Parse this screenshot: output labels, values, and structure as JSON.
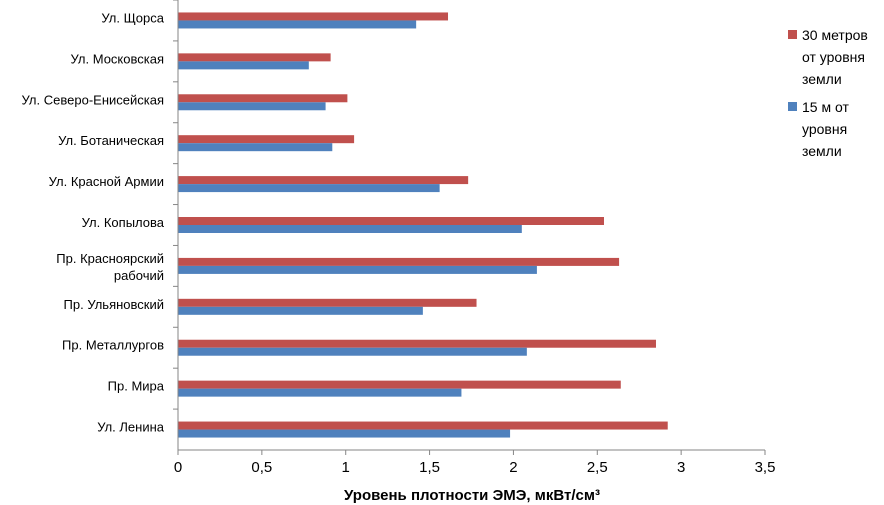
{
  "chart_data": {
    "type": "bar",
    "orientation": "horizontal",
    "title": "",
    "xlabel": "Уровень плотности ЭМЭ, мкВт/см³",
    "ylabel": "",
    "xlim": [
      0,
      3.5
    ],
    "xticks": [
      "0",
      "0,5",
      "1",
      "1,5",
      "2",
      "2,5",
      "3",
      "3,5"
    ],
    "grid": false,
    "legend_position": "right",
    "categories": [
      "Ул. Щорса",
      "Ул. Московская",
      "Ул. Северо-Енисейская",
      "Ул. Ботаническая",
      "Ул. Красной Армии",
      "Ул. Копылова",
      "Пр. Красноярский рабочий",
      "Пр. Ульяновский",
      "Пр. Металлургов",
      "Пр. Мира",
      "Ул. Ленина"
    ],
    "series": [
      {
        "name": "30 метров от уровня земли",
        "color": "#C0504D",
        "values": [
          1.61,
          0.91,
          1.01,
          1.05,
          1.73,
          2.54,
          2.63,
          1.78,
          2.85,
          2.64,
          2.92
        ]
      },
      {
        "name": "15 м от уровня земли",
        "color": "#4F81BD",
        "values": [
          1.42,
          0.78,
          0.88,
          0.92,
          1.56,
          2.05,
          2.14,
          1.46,
          2.08,
          1.69,
          1.98
        ]
      }
    ]
  }
}
